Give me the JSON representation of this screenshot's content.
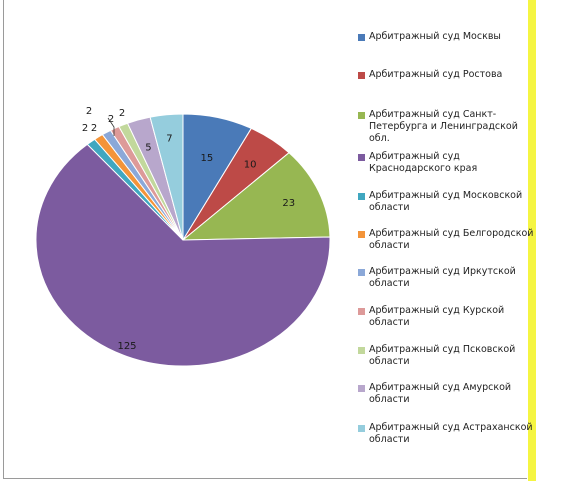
{
  "chart_data": {
    "type": "pie",
    "slices": [
      {
        "name": "Арбитражный суд Москвы",
        "value": 15,
        "label": "15",
        "color": "#4a7ab8"
      },
      {
        "name": "Арбитражный суд Ростова",
        "value": 10,
        "label": "10",
        "color": "#bd4a47"
      },
      {
        "name": "Арбитражный суд Санкт-Петербурга и Ленинградской обл.",
        "value": 23,
        "label": "23",
        "color": "#97b752"
      },
      {
        "name": "Арбитражный суд Краснодарского края",
        "value": 125,
        "label": "125",
        "color": "#7c5b9f"
      },
      {
        "name": "Арбитражный суд Московской области",
        "value": 2,
        "label": "2",
        "color": "#40a7c0"
      },
      {
        "name": "Арбитражный суд Белгородской области",
        "value": 2,
        "label": "2",
        "color": "#f39439"
      },
      {
        "name": "Арбитражный суд Иркутской области",
        "value": 2,
        "label": "2",
        "color": "#8ba8d8"
      },
      {
        "name": "Арбитражный суд Курской области",
        "value": 2,
        "label": "2",
        "color": "#dd9a99"
      },
      {
        "name": "Арбитражный суд Псковской области",
        "value": 2,
        "label": "2",
        "color": "#c2d89c"
      },
      {
        "name": "Арбитражный суд Амурской области",
        "value": 5,
        "label": "5",
        "color": "#b8a7cc"
      },
      {
        "name": "Арбитражный суд Астраханской области",
        "value": 7,
        "label": "7",
        "color": "#95cddd"
      }
    ],
    "legend_position": "right"
  },
  "legend": {
    "items": [
      {
        "line1": "Арбитражный суд Москвы",
        "line2": "",
        "line3": ""
      },
      {
        "line1": "Арбитражный суд Ростова",
        "line2": "",
        "line3": ""
      },
      {
        "line1": "Арбитражный суд Санкт-",
        "line2": "Петербурга  и Ленинградской",
        "line3": "обл."
      },
      {
        "line1": "Арбитражный суд",
        "line2": "Краснодарского края",
        "line3": ""
      },
      {
        "line1": "Арбитражный суд Московской",
        "line2": "области",
        "line3": ""
      },
      {
        "line1": "Арбитражный суд Белгородской",
        "line2": "области",
        "line3": ""
      },
      {
        "line1": "Арбитражный суд Иркутской",
        "line2": "области",
        "line3": ""
      },
      {
        "line1": "Арбитражный суд Курской",
        "line2": "области",
        "line3": ""
      },
      {
        "line1": "Арбитражный суд Псковской",
        "line2": "области",
        "line3": ""
      },
      {
        "line1": "Арбитражный суд Амурской",
        "line2": "области",
        "line3": ""
      },
      {
        "line1": "Арбитражный суд Астраханской",
        "line2": "области",
        "line3": ""
      }
    ]
  }
}
